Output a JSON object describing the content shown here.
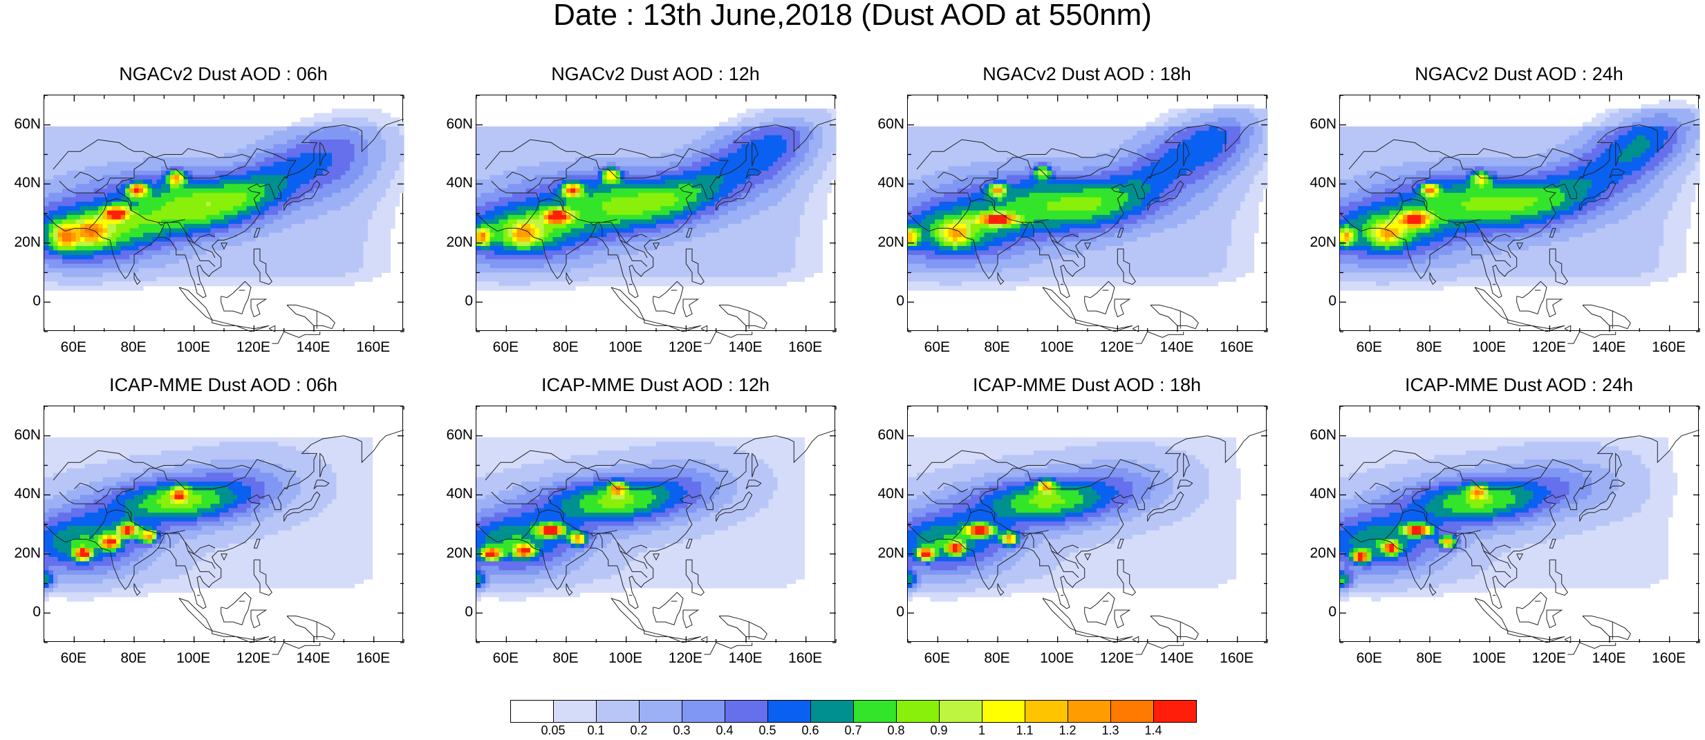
{
  "title": "Date : 13th June,2018 (Dust AOD at 550nm)",
  "lat_ticks": [
    "0",
    "20N",
    "40N",
    "60N"
  ],
  "lat_values": [
    0,
    20,
    40,
    60
  ],
  "lon_ticks": [
    "60E",
    "80E",
    "100E",
    "120E",
    "140E",
    "160E"
  ],
  "lon_values": [
    60,
    80,
    100,
    120,
    140,
    160
  ],
  "map_extent": {
    "lon_min": 50,
    "lon_max": 170,
    "lat_min": -10,
    "lat_max": 70
  },
  "panels": [
    {
      "title": "NGACv2 Dust AOD : 06h",
      "model": "NGACv2",
      "hour": "06h"
    },
    {
      "title": "NGACv2 Dust AOD : 12h",
      "model": "NGACv2",
      "hour": "12h"
    },
    {
      "title": "NGACv2 Dust AOD : 18h",
      "model": "NGACv2",
      "hour": "18h"
    },
    {
      "title": "NGACv2 Dust AOD : 24h",
      "model": "NGACv2",
      "hour": "24h"
    },
    {
      "title": "ICAP-MME Dust AOD : 06h",
      "model": "ICAP-MME",
      "hour": "06h"
    },
    {
      "title": "ICAP-MME Dust AOD : 12h",
      "model": "ICAP-MME",
      "hour": "12h"
    },
    {
      "title": "ICAP-MME Dust AOD : 18h",
      "model": "ICAP-MME",
      "hour": "18h"
    },
    {
      "title": "ICAP-MME Dust AOD : 24h",
      "model": "ICAP-MME",
      "hour": "24h"
    }
  ],
  "colorbar": {
    "labels": [
      "0.05",
      "0.1",
      "0.2",
      "0.3",
      "0.4",
      "0.5",
      "0.6",
      "0.7",
      "0.8",
      "0.9",
      "1",
      "1.1",
      "1.2",
      "1.3",
      "1.4"
    ],
    "colors": [
      "#ffffff",
      "#d4dcfa",
      "#b8c6f7",
      "#9cb0f5",
      "#8097f3",
      "#6670ec",
      "#0a60f0",
      "#009090",
      "#33e52a",
      "#88f00a",
      "#bef540",
      "#ffff00",
      "#ffc400",
      "#ff9c00",
      "#ff7a00",
      "#ff1e0a"
    ]
  }
}
